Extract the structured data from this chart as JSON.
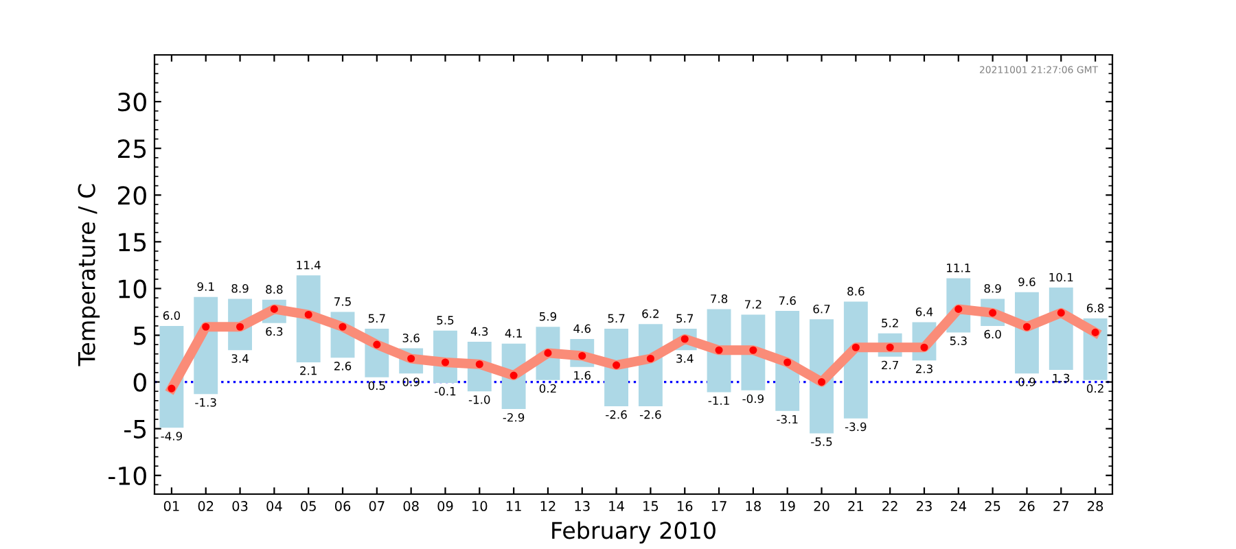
{
  "chart_data": {
    "type": "bar",
    "xlabel": "February 2010",
    "ylabel": "Temperature / C",
    "categories": [
      "01",
      "02",
      "03",
      "04",
      "05",
      "06",
      "07",
      "08",
      "09",
      "10",
      "11",
      "12",
      "13",
      "14",
      "15",
      "16",
      "17",
      "18",
      "19",
      "20",
      "21",
      "22",
      "23",
      "24",
      "25",
      "26",
      "27",
      "28"
    ],
    "series": [
      {
        "color": "#add8e6",
        "base": [
          -4.9,
          -1.3,
          3.4,
          6.3,
          2.1,
          2.6,
          0.5,
          0.9,
          -0.1,
          -1.0,
          -2.9,
          0.2,
          1.6,
          -2.6,
          -2.6,
          3.4,
          -1.1,
          -0.9,
          -3.1,
          -5.5,
          -3.9,
          2.7,
          2.3,
          5.3,
          6.0,
          0.9,
          1.3,
          0.2
        ],
        "values": [
          10.9,
          10.4,
          5.5,
          2.5,
          9.3,
          4.9,
          5.2,
          2.7,
          5.6,
          5.3,
          7.0,
          5.7,
          3.0,
          8.3,
          8.8,
          2.3,
          8.9,
          8.1,
          10.7,
          12.2,
          12.5,
          2.5,
          4.1,
          5.8,
          2.9,
          8.7,
          8.8,
          6.6
        ]
      },
      {
        "type": "line",
        "color": "#fa8c78",
        "marker": "circle",
        "values": [
          -0.7,
          5.9,
          5.9,
          7.8,
          7.2,
          5.9,
          4.0,
          2.5,
          2.1,
          1.9,
          0.7,
          3.1,
          2.8,
          1.8,
          2.5,
          4.6,
          3.4,
          3.4,
          2.1,
          0.0,
          3.7,
          3.7,
          3.7,
          7.8,
          7.4,
          5.9,
          7.4,
          5.3
        ]
      }
    ],
    "ylim": [
      -12,
      35
    ],
    "yticks": [
      -10,
      -5,
      0,
      5,
      10,
      15,
      20,
      25,
      30
    ],
    "ref_lines": [
      {
        "axis": "y",
        "value": 0,
        "color": "#0000ff",
        "line_style": "dotted"
      }
    ],
    "grid": false,
    "legend": false,
    "annotations": [
      {
        "text": "6.0",
        "x": "01",
        "y": 6.0
      },
      {
        "text": "-4.9",
        "x": "01",
        "y": -4.9
      },
      {
        "text": "9.1",
        "x": "02",
        "y": 9.1
      },
      {
        "text": "-1.3",
        "x": "02",
        "y": -1.3
      },
      {
        "text": "8.9",
        "x": "03",
        "y": 8.9
      },
      {
        "text": "3.4",
        "x": "03",
        "y": 3.4
      },
      {
        "text": "8.8",
        "x": "04",
        "y": 8.8
      },
      {
        "text": "6.3",
        "x": "04",
        "y": 6.3
      },
      {
        "text": "11.4",
        "x": "05",
        "y": 11.4
      },
      {
        "text": "2.1",
        "x": "05",
        "y": 2.1
      },
      {
        "text": "7.5",
        "x": "06",
        "y": 7.5
      },
      {
        "text": "2.6",
        "x": "06",
        "y": 2.6
      },
      {
        "text": "5.7",
        "x": "07",
        "y": 5.7
      },
      {
        "text": "0.5",
        "x": "07",
        "y": 0.5
      },
      {
        "text": "3.6",
        "x": "08",
        "y": 3.6
      },
      {
        "text": "0.9",
        "x": "08",
        "y": 0.9
      },
      {
        "text": "5.5",
        "x": "09",
        "y": 5.5
      },
      {
        "text": "-0.1",
        "x": "09",
        "y": -0.1
      },
      {
        "text": "4.3",
        "x": "10",
        "y": 4.3
      },
      {
        "text": "-1.0",
        "x": "10",
        "y": -1.0
      },
      {
        "text": "4.1",
        "x": "11",
        "y": 4.1
      },
      {
        "text": "-2.9",
        "x": "11",
        "y": -2.9
      },
      {
        "text": "5.9",
        "x": "12",
        "y": 5.9
      },
      {
        "text": "0.2",
        "x": "12",
        "y": 0.2
      },
      {
        "text": "4.6",
        "x": "13",
        "y": 4.6
      },
      {
        "text": "1.6",
        "x": "13",
        "y": 1.6
      },
      {
        "text": "5.7",
        "x": "14",
        "y": 5.7
      },
      {
        "text": "-2.6",
        "x": "14",
        "y": -2.6
      },
      {
        "text": "6.2",
        "x": "15",
        "y": 6.2
      },
      {
        "text": "-2.6",
        "x": "15",
        "y": -2.6
      },
      {
        "text": "5.7",
        "x": "16",
        "y": 5.7
      },
      {
        "text": "3.4",
        "x": "16",
        "y": 3.4
      },
      {
        "text": "7.8",
        "x": "17",
        "y": 7.8
      },
      {
        "text": "-1.1",
        "x": "17",
        "y": -1.1
      },
      {
        "text": "7.2",
        "x": "18",
        "y": 7.2
      },
      {
        "text": "-0.9",
        "x": "18",
        "y": -0.9
      },
      {
        "text": "7.6",
        "x": "19",
        "y": 7.6
      },
      {
        "text": "-3.1",
        "x": "19",
        "y": -3.1
      },
      {
        "text": "6.7",
        "x": "20",
        "y": 6.7
      },
      {
        "text": "-5.5",
        "x": "20",
        "y": -5.5
      },
      {
        "text": "8.6",
        "x": "21",
        "y": 8.6
      },
      {
        "text": "-3.9",
        "x": "21",
        "y": -3.9
      },
      {
        "text": "5.2",
        "x": "22",
        "y": 5.2
      },
      {
        "text": "2.7",
        "x": "22",
        "y": 2.7
      },
      {
        "text": "6.4",
        "x": "23",
        "y": 6.4
      },
      {
        "text": "2.3",
        "x": "23",
        "y": 2.3
      },
      {
        "text": "11.1",
        "x": "24",
        "y": 11.1
      },
      {
        "text": "5.3",
        "x": "24",
        "y": 5.3
      },
      {
        "text": "8.9",
        "x": "25",
        "y": 8.9
      },
      {
        "text": "6.0",
        "x": "25",
        "y": 6.0
      },
      {
        "text": "9.6",
        "x": "26",
        "y": 9.6
      },
      {
        "text": "0.9",
        "x": "26",
        "y": 0.9
      },
      {
        "text": "10.1",
        "x": "27",
        "y": 10.1
      },
      {
        "text": "1.3",
        "x": "27",
        "y": 1.3
      },
      {
        "text": "6.8",
        "x": "28",
        "y": 6.8
      },
      {
        "text": "0.2",
        "x": "28",
        "y": 0.2
      },
      "20211001 21:27:06 GMT"
    ]
  }
}
